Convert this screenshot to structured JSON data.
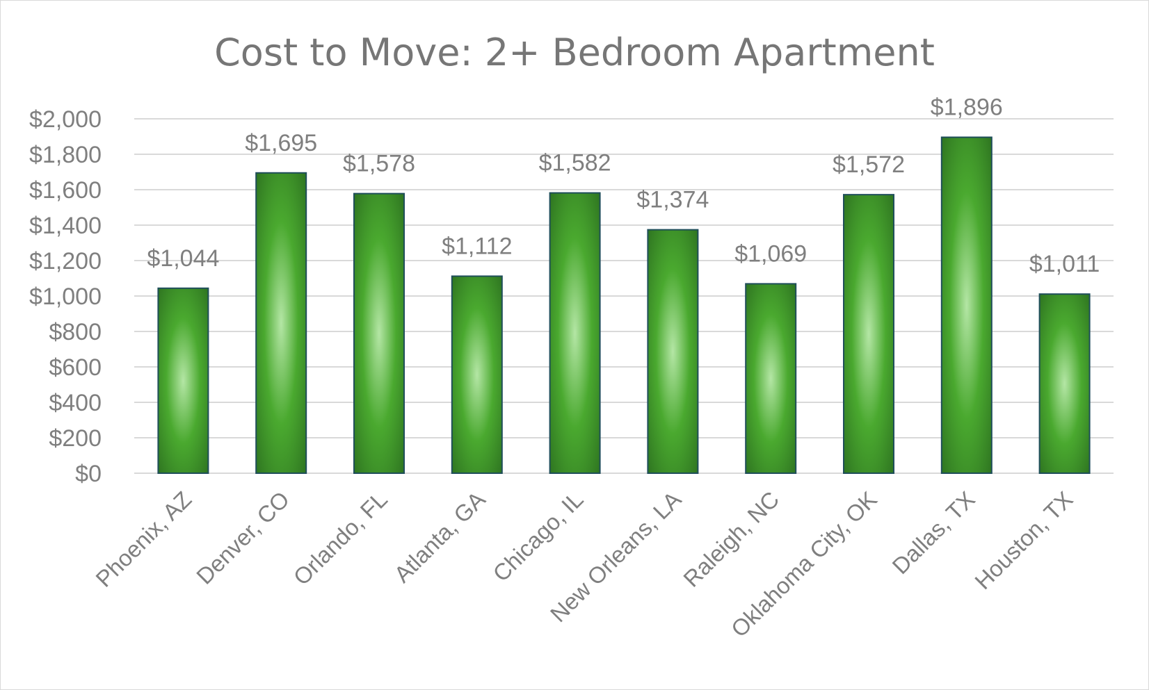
{
  "chart_data": {
    "type": "bar",
    "title": "Cost to Move: 2+ Bedroom Apartment",
    "xlabel": "",
    "ylabel": "",
    "categories": [
      "Phoenix, AZ",
      "Denver, CO",
      "Orlando, FL",
      "Atlanta, GA",
      "Chicago, IL",
      "New Orleans, LA",
      "Raleigh, NC",
      "Oklahoma City, OK",
      "Dallas, TX",
      "Houston, TX"
    ],
    "values": [
      1044,
      1695,
      1578,
      1112,
      1582,
      1374,
      1069,
      1572,
      1896,
      1011
    ],
    "data_labels": [
      "$1,044",
      "$1,695",
      "$1,578",
      "$1,112",
      "$1,582",
      "$1,374",
      "$1,069",
      "$1,572",
      "$1,896",
      "$1,011"
    ],
    "y_ticks": [
      0,
      200,
      400,
      600,
      800,
      1000,
      1200,
      1400,
      1600,
      1800,
      2000
    ],
    "y_tick_labels": [
      "$0",
      "$200",
      "$400",
      "$600",
      "$800",
      "$1,000",
      "$1,200",
      "$1,400",
      "$1,600",
      "$1,800",
      "$2,000"
    ],
    "ylim": [
      0,
      2000
    ],
    "grid": true,
    "legend": "none",
    "colors": {
      "bar_dark": "#2b6e1f",
      "bar_mid": "#4aa92f",
      "bar_light": "#b4e6a5",
      "bar_outline": "#1f4e5a",
      "text": "#7f7f7f",
      "grid": "#d9d9d9"
    }
  }
}
